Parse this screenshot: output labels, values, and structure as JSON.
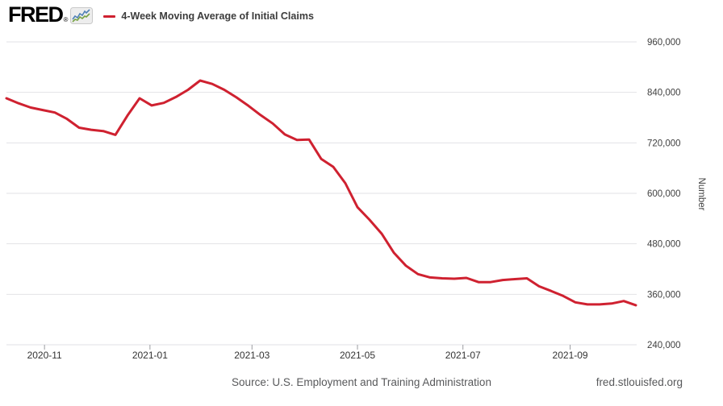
{
  "header": {
    "logo_text": "FRED",
    "registered_mark": "®",
    "legend_label": "4-Week Moving Average of Initial Claims"
  },
  "footer": {
    "source": "Source: U.S. Employment and Training Administration",
    "site": "fred.stlouisfed.org"
  },
  "colors": {
    "line": "#cf2130",
    "grid": "#e2e2e6",
    "axis_tick": "#9b9ca1",
    "y_label_text": "#404040",
    "x_label_text": "#333333",
    "axis_title_text": "#404040",
    "footer_text": "#58595b",
    "icon_blue": "#4f81b6",
    "icon_green": "#77a244",
    "icon_bg": "#ededed",
    "icon_border": "#c9c9c9"
  },
  "chart_data": {
    "type": "line",
    "title": "4-Week Moving Average of Initial Claims",
    "xlabel": "",
    "ylabel": "Number",
    "ylim": [
      240000,
      960000
    ],
    "grid": "horizontal",
    "legend_position": "top-left",
    "y_ticks": [
      {
        "value": 960000,
        "label": "960,000"
      },
      {
        "value": 840000,
        "label": "840,000"
      },
      {
        "value": 720000,
        "label": "720,000"
      },
      {
        "value": 600000,
        "label": "600,000"
      },
      {
        "value": 480000,
        "label": "480,000"
      },
      {
        "value": 360000,
        "label": "360,000"
      },
      {
        "value": 240000,
        "label": "240,000"
      }
    ],
    "x_ticks": [
      {
        "label": "2020-11",
        "date": "2020-11-01"
      },
      {
        "label": "2021-01",
        "date": "2021-01-01"
      },
      {
        "label": "2021-03",
        "date": "2021-03-01"
      },
      {
        "label": "2021-05",
        "date": "2021-05-01"
      },
      {
        "label": "2021-07",
        "date": "2021-07-01"
      },
      {
        "label": "2021-09",
        "date": "2021-09-01"
      }
    ],
    "series": [
      {
        "name": "4-Week Moving Average of Initial Claims",
        "color": "#cf2130",
        "dates": [
          "2020-10-10",
          "2020-10-17",
          "2020-10-24",
          "2020-10-31",
          "2020-11-07",
          "2020-11-14",
          "2020-11-21",
          "2020-11-28",
          "2020-12-05",
          "2020-12-12",
          "2020-12-19",
          "2020-12-26",
          "2021-01-02",
          "2021-01-09",
          "2021-01-16",
          "2021-01-23",
          "2021-01-30",
          "2021-02-06",
          "2021-02-13",
          "2021-02-20",
          "2021-02-27",
          "2021-03-06",
          "2021-03-13",
          "2021-03-20",
          "2021-03-27",
          "2021-04-03",
          "2021-04-10",
          "2021-04-17",
          "2021-04-24",
          "2021-05-01",
          "2021-05-08",
          "2021-05-15",
          "2021-05-22",
          "2021-05-29",
          "2021-06-05",
          "2021-06-12",
          "2021-06-19",
          "2021-06-26",
          "2021-07-03",
          "2021-07-10",
          "2021-07-17",
          "2021-07-24",
          "2021-07-31",
          "2021-08-07",
          "2021-08-14",
          "2021-08-21",
          "2021-08-28",
          "2021-09-04",
          "2021-09-11",
          "2021-09-18",
          "2021-09-25",
          "2021-10-02",
          "2021-10-09"
        ],
        "values": [
          826000,
          814000,
          804000,
          798000,
          792000,
          777000,
          756000,
          751000,
          748000,
          739000,
          785000,
          826000,
          809000,
          815000,
          829000,
          846000,
          868000,
          860000,
          846000,
          828000,
          808000,
          786000,
          766000,
          740000,
          727000,
          728000,
          682000,
          663000,
          624000,
          567000,
          537000,
          504000,
          459000,
          428000,
          408000,
          400000,
          398000,
          397000,
          399000,
          389000,
          389000,
          394000,
          396000,
          398000,
          379000,
          368000,
          356000,
          341000,
          336000,
          336000,
          338000,
          344000,
          334000
        ]
      }
    ]
  }
}
